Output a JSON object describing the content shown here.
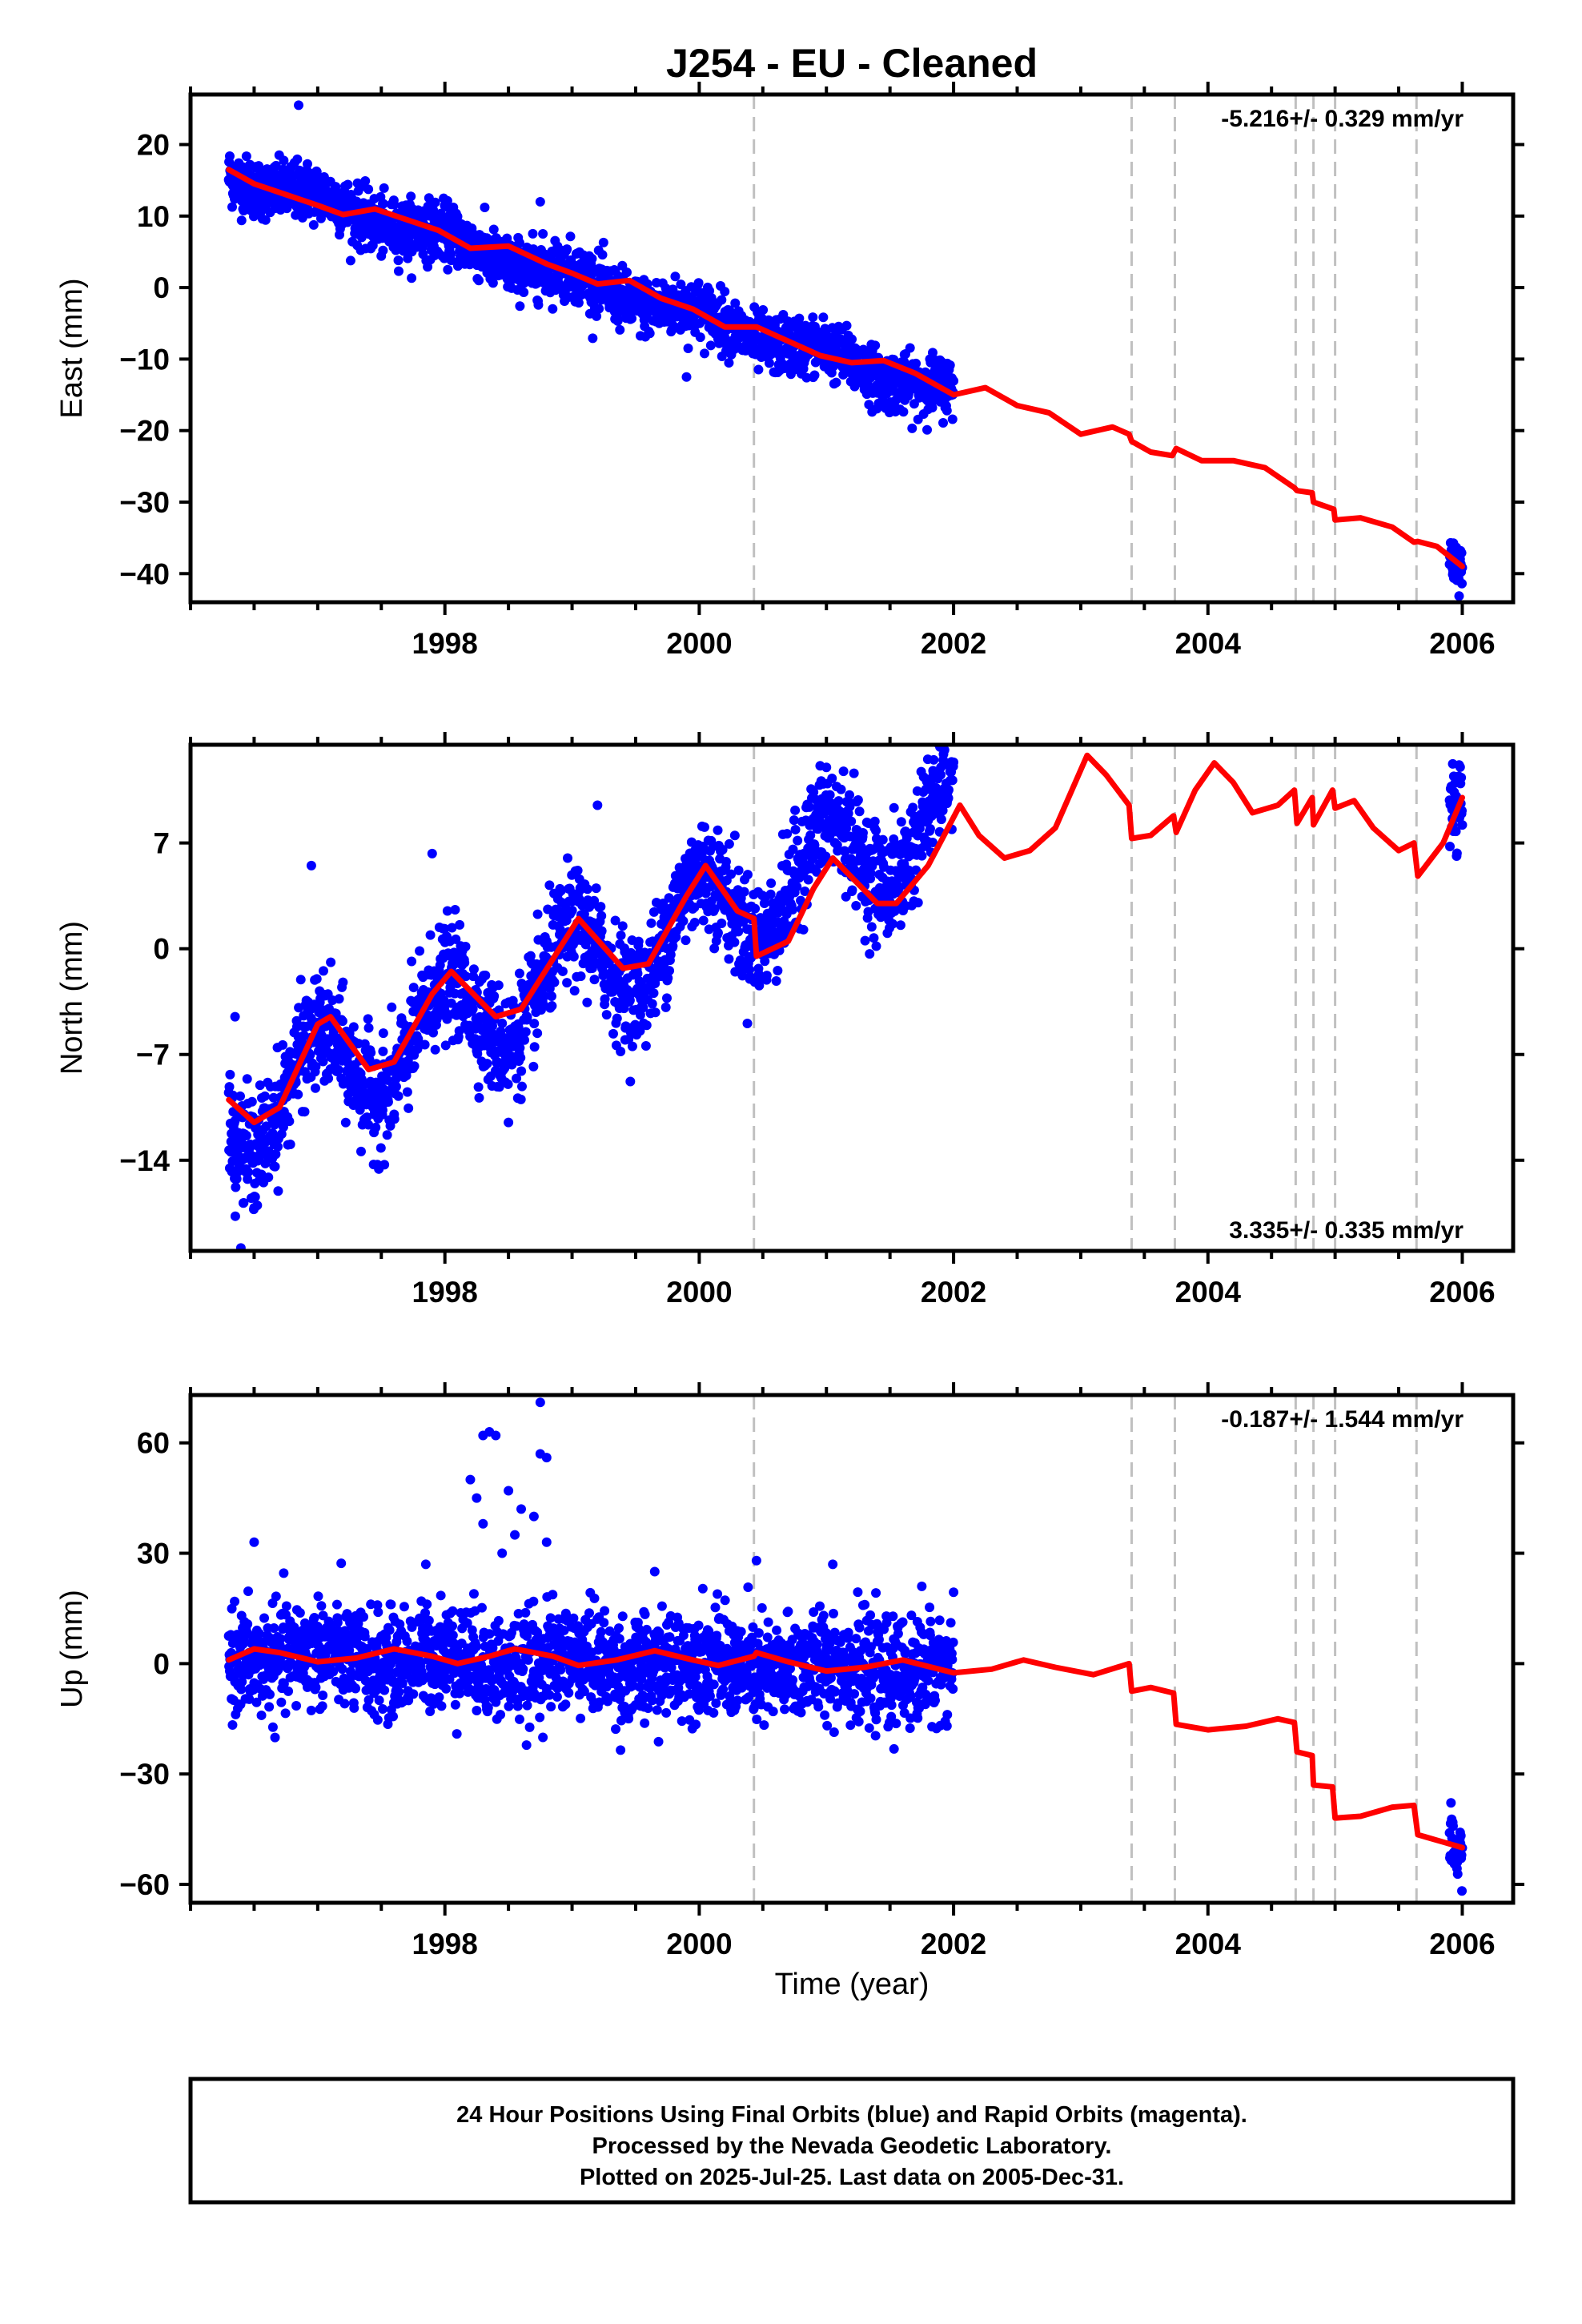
{
  "title": "J254  - EU - Cleaned",
  "colors": {
    "final_orbits": "#0000ff",
    "model_fit": "#ff0000",
    "steps": "#c0c0c0",
    "frame": "#000000"
  },
  "xlabel": "Time (year)",
  "footer": {
    "line1": "24 Hour Positions Using Final Orbits (blue) and Rapid Orbits (magenta).",
    "line2": "Processed by the Nevada Geodetic Laboratory.",
    "line3": "Plotted on 2025-Jul-25. Last data on 2005-Dec-31."
  },
  "chart_data": [
    {
      "type": "scatter",
      "component": "east",
      "ylabel": "East (mm)",
      "rate_label": "-5.216+/- 0.329 mm/yr",
      "rate_position": "top-right",
      "xlim": [
        1996.0,
        2006.4
      ],
      "ylim": [
        -44,
        27
      ],
      "xticks": [
        1998,
        2000,
        2002,
        2004,
        2006
      ],
      "yticks": [
        20,
        10,
        0,
        -10,
        -20,
        -30,
        -40
      ],
      "data_segments": [
        {
          "x_start": 1996.3,
          "x_end": 2002.0,
          "trend_start": 16,
          "trend_end": -15,
          "annual_amp": 1.0,
          "scatter_sd": 2.0
        },
        {
          "x_start": 2005.9,
          "x_end": 2006.0,
          "trend_start": -37.5,
          "trend_end": -39,
          "annual_amp": 0,
          "scatter_sd": 1.6
        }
      ],
      "outliers": [
        [
          1996.85,
          25.5
        ],
        [
          1998.75,
          12
        ],
        [
          1999.9,
          -12.5
        ]
      ],
      "model_line": [
        [
          1996.3,
          16.5
        ],
        [
          1996.5,
          14.5
        ],
        [
          1996.75,
          13
        ],
        [
          1997.0,
          11.5
        ],
        [
          1997.2,
          10.2
        ],
        [
          1997.45,
          11
        ],
        [
          1997.7,
          9.5
        ],
        [
          1997.95,
          8
        ],
        [
          1998.2,
          5.5
        ],
        [
          1998.5,
          5.8
        ],
        [
          1998.8,
          3.3
        ],
        [
          1999.0,
          2
        ],
        [
          1999.2,
          0.5
        ],
        [
          1999.45,
          1.0
        ],
        [
          1999.7,
          -1.5
        ],
        [
          1999.95,
          -3
        ],
        [
          2000.2,
          -5.5
        ],
        [
          2000.43,
          -5.5
        ],
        [
          2000.45,
          -5.5
        ],
        [
          2000.7,
          -7.5
        ],
        [
          2000.95,
          -9.5
        ],
        [
          2001.2,
          -10.5
        ],
        [
          2001.45,
          -10.2
        ],
        [
          2001.7,
          -12
        ],
        [
          2002.0,
          -15
        ],
        [
          2002.25,
          -14
        ],
        [
          2002.5,
          -16.5
        ],
        [
          2002.75,
          -17.5
        ],
        [
          2003.0,
          -20.5
        ],
        [
          2003.25,
          -19.5
        ],
        [
          2003.38,
          -20.5
        ],
        [
          2003.4,
          -21.5
        ],
        [
          2003.55,
          -23
        ],
        [
          2003.72,
          -23.5
        ],
        [
          2003.75,
          -22.5
        ],
        [
          2003.95,
          -24.2
        ],
        [
          2004.2,
          -24.2
        ],
        [
          2004.45,
          -25.2
        ],
        [
          2004.68,
          -28
        ],
        [
          2004.7,
          -28.4
        ],
        [
          2004.82,
          -28.7
        ],
        [
          2004.83,
          -30
        ],
        [
          2004.99,
          -31
        ],
        [
          2005.0,
          -32.5
        ],
        [
          2005.2,
          -32.2
        ],
        [
          2005.45,
          -33.5
        ],
        [
          2005.62,
          -35.6
        ],
        [
          2005.65,
          -35.5
        ],
        [
          2005.8,
          -36.2
        ],
        [
          2006.0,
          -39
        ]
      ],
      "step_lines": [
        2000.43,
        2003.4,
        2003.74,
        2004.69,
        2004.83,
        2005.0,
        2005.64
      ]
    },
    {
      "type": "scatter",
      "component": "north",
      "ylabel": "North (mm)",
      "rate_label": "3.335+/- 0.335 mm/yr",
      "rate_position": "bottom-right",
      "xlim": [
        1996.0,
        2006.4
      ],
      "ylim": [
        -20,
        13.5
      ],
      "xticks": [
        1998,
        2000,
        2002,
        2004,
        2006
      ],
      "yticks": [
        7,
        0,
        -7,
        -14
      ],
      "data_segments": [
        {
          "x_start": 1996.3,
          "x_end": 2002.0,
          "trend_start": -11,
          "trend_end": 9,
          "annual_amp": 3.0,
          "scatter_sd": 1.8
        },
        {
          "x_start": 2005.9,
          "x_end": 2006.0,
          "trend_start": 9,
          "trend_end": 9.5,
          "annual_amp": 0,
          "scatter_sd": 1.5
        }
      ],
      "outliers": [
        [
          1996.35,
          -4.5
        ],
        [
          1996.95,
          5.5
        ],
        [
          1997.9,
          6.3
        ],
        [
          1998.5,
          -11.5
        ],
        [
          1999.2,
          9.5
        ],
        [
          2001.0,
          12
        ],
        [
          2001.9,
          12
        ]
      ],
      "model_line": [
        [
          1996.3,
          -10
        ],
        [
          1996.5,
          -11.5
        ],
        [
          1996.7,
          -10.5
        ],
        [
          1997.0,
          -5
        ],
        [
          1997.1,
          -4.5
        ],
        [
          1997.4,
          -8
        ],
        [
          1997.6,
          -7.5
        ],
        [
          1997.9,
          -3
        ],
        [
          1998.05,
          -1.5
        ],
        [
          1998.4,
          -4.5
        ],
        [
          1998.6,
          -4
        ],
        [
          1998.9,
          0
        ],
        [
          1999.05,
          2.0
        ],
        [
          1999.4,
          -1.3
        ],
        [
          1999.6,
          -1
        ],
        [
          1999.9,
          3.5
        ],
        [
          2000.05,
          5.5
        ],
        [
          2000.3,
          2.5
        ],
        [
          2000.43,
          2.0
        ],
        [
          2000.45,
          -0.5
        ],
        [
          2000.7,
          0.5
        ],
        [
          2000.9,
          4
        ],
        [
          2001.05,
          6.0
        ],
        [
          2001.4,
          3.0
        ],
        [
          2001.55,
          3
        ],
        [
          2001.8,
          5.5
        ],
        [
          2002.05,
          9.5
        ],
        [
          2002.2,
          7.5
        ],
        [
          2002.4,
          6
        ],
        [
          2002.6,
          6.5
        ],
        [
          2002.8,
          8
        ],
        [
          2003.05,
          12.8
        ],
        [
          2003.2,
          11.5
        ],
        [
          2003.38,
          9.5
        ],
        [
          2003.4,
          7.3
        ],
        [
          2003.55,
          7.5
        ],
        [
          2003.73,
          8.8
        ],
        [
          2003.75,
          7.7
        ],
        [
          2003.9,
          10.5
        ],
        [
          2004.05,
          12.3
        ],
        [
          2004.2,
          11
        ],
        [
          2004.35,
          9
        ],
        [
          2004.55,
          9.5
        ],
        [
          2004.68,
          10.5
        ],
        [
          2004.7,
          8.3
        ],
        [
          2004.82,
          10
        ],
        [
          2004.83,
          8.2
        ],
        [
          2004.98,
          10.5
        ],
        [
          2005.0,
          9.3
        ],
        [
          2005.15,
          9.8
        ],
        [
          2005.3,
          8
        ],
        [
          2005.5,
          6.5
        ],
        [
          2005.62,
          7.0
        ],
        [
          2005.65,
          4.8
        ],
        [
          2005.85,
          7
        ],
        [
          2006.0,
          10
        ]
      ],
      "step_lines": [
        2000.43,
        2003.4,
        2003.74,
        2004.69,
        2004.83,
        2005.0,
        2005.64
      ]
    },
    {
      "type": "scatter",
      "component": "up",
      "ylabel": "Up (mm)",
      "rate_label": "-0.187+/- 1.544 mm/yr",
      "rate_position": "top-right",
      "xlim": [
        1996.0,
        2006.4
      ],
      "ylim": [
        -65,
        73
      ],
      "xticks": [
        1998,
        2000,
        2002,
        2004,
        2006
      ],
      "yticks": [
        60,
        30,
        0,
        -30,
        -60
      ],
      "data_segments": [
        {
          "x_start": 1996.3,
          "x_end": 2002.0,
          "trend_start": 2,
          "trend_end": -2,
          "annual_amp": 2.0,
          "scatter_sd": 7.0
        },
        {
          "x_start": 2005.9,
          "x_end": 2006.0,
          "trend_start": -50,
          "trend_end": -51,
          "annual_amp": 0,
          "scatter_sd": 4.5
        }
      ],
      "outliers": [
        [
          1998.3,
          62
        ],
        [
          1998.35,
          63
        ],
        [
          1998.4,
          62
        ],
        [
          1998.75,
          57
        ],
        [
          1998.8,
          56
        ],
        [
          1998.75,
          71
        ],
        [
          1998.2,
          50
        ],
        [
          1998.25,
          45
        ],
        [
          1998.5,
          47
        ],
        [
          1998.6,
          42
        ],
        [
          1998.7,
          40
        ],
        [
          1998.3,
          38
        ],
        [
          1998.55,
          35
        ],
        [
          1998.45,
          30
        ],
        [
          1998.8,
          33
        ],
        [
          1997.85,
          27
        ],
        [
          1999.65,
          25
        ],
        [
          2000.45,
          28
        ],
        [
          2001.05,
          27
        ],
        [
          2001.75,
          21
        ],
        [
          1996.5,
          33
        ]
      ],
      "model_line": [
        [
          1996.3,
          1
        ],
        [
          1996.5,
          4
        ],
        [
          1996.7,
          3
        ],
        [
          1997.0,
          0.5
        ],
        [
          1997.3,
          1.5
        ],
        [
          1997.6,
          4
        ],
        [
          1997.9,
          2
        ],
        [
          1998.1,
          0
        ],
        [
          1998.35,
          2
        ],
        [
          1998.55,
          4
        ],
        [
          1998.85,
          2
        ],
        [
          1999.05,
          -0.5
        ],
        [
          1999.35,
          1
        ],
        [
          1999.65,
          3.5
        ],
        [
          1999.95,
          1
        ],
        [
          2000.15,
          -0.5
        ],
        [
          2000.43,
          2
        ],
        [
          2000.45,
          3
        ],
        [
          2000.7,
          0.5
        ],
        [
          2001.0,
          -2
        ],
        [
          2001.3,
          -1
        ],
        [
          2001.6,
          1
        ],
        [
          2002.0,
          -2.5
        ],
        [
          2002.3,
          -1.5
        ],
        [
          2002.55,
          1
        ],
        [
          2002.8,
          -1
        ],
        [
          2003.1,
          -3
        ],
        [
          2003.38,
          0
        ],
        [
          2003.4,
          -7.5
        ],
        [
          2003.55,
          -6.5
        ],
        [
          2003.73,
          -8
        ],
        [
          2003.75,
          -16.5
        ],
        [
          2004.0,
          -18
        ],
        [
          2004.3,
          -17
        ],
        [
          2004.55,
          -15
        ],
        [
          2004.68,
          -16
        ],
        [
          2004.7,
          -24
        ],
        [
          2004.82,
          -25
        ],
        [
          2004.83,
          -33
        ],
        [
          2004.98,
          -33.5
        ],
        [
          2005.0,
          -42
        ],
        [
          2005.2,
          -41.5
        ],
        [
          2005.45,
          -39
        ],
        [
          2005.62,
          -38.5
        ],
        [
          2005.65,
          -46.5
        ],
        [
          2005.85,
          -48.5
        ],
        [
          2006.0,
          -50
        ]
      ],
      "step_lines": [
        2000.43,
        2003.4,
        2003.74,
        2004.69,
        2004.83,
        2005.0,
        2005.64
      ]
    }
  ]
}
